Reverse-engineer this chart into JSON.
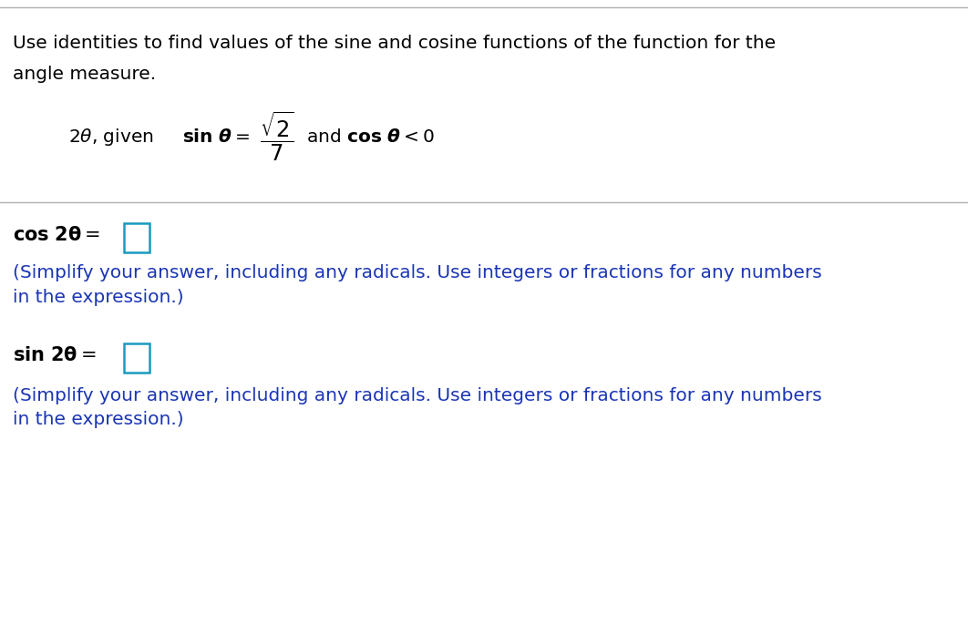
{
  "bg_color": "#ffffff",
  "separator_color": "#b0b0b0",
  "top_border_color": "#b0b0b0",
  "title_text_line1": "Use identities to find values of the sine and cosine functions of the function for the",
  "title_text_line2": "angle measure.",
  "title_color": "#000000",
  "title_fontsize": 14.5,
  "problem_color": "#000000",
  "problem_fontsize": 14.5,
  "cos_label_color": "#000000",
  "cos_label_fontsize": 15,
  "sin_label_color": "#000000",
  "sin_label_fontsize": 15,
  "simplify_color": "#1a35b5",
  "simplify_fontsize": 14.5,
  "box_color": "#1a9abf",
  "simplify_text": "(Simplify your answer, including any radicals. Use integers or fractions for any numbers\nin the expression.)"
}
